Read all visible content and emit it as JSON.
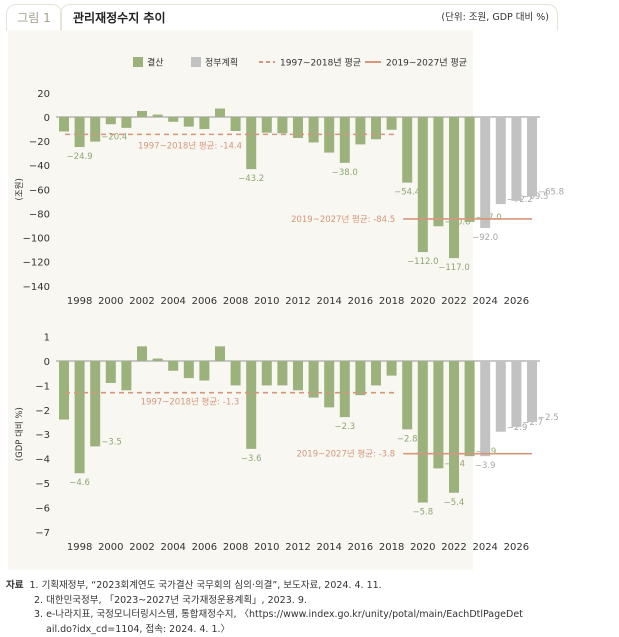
{
  "figure": {
    "label": "그림 1",
    "title": "관리재정수지 추이",
    "unit": "(단위: 조원, GDP 대비 %)"
  },
  "legend": [
    {
      "label": "결산",
      "color": "#9bb27c",
      "kind": "box"
    },
    {
      "label": "정부계획",
      "color": "#c2c2c2",
      "kind": "box"
    },
    {
      "label": "1997~2018년 평균",
      "color": "#d5977a",
      "kind": "dash"
    },
    {
      "label": "2019~2027년 평균",
      "color": "#d5977a",
      "kind": "line"
    }
  ],
  "colors": {
    "actual": "#9bb27c",
    "plan": "#c2c2c2",
    "avg": "#d5977a",
    "zero": "#a9a9a9",
    "panel": "#f8f7f2",
    "label_actual": "#8ea673",
    "label_plan": "#a6a6a6"
  },
  "chart_data": [
    {
      "type": "bar",
      "ylabel": "(조원)",
      "ylim": [
        -140,
        20
      ],
      "yticks": [
        20,
        0,
        -20,
        -40,
        -60,
        -80,
        -100,
        -120,
        -140
      ],
      "years": [
        1997,
        1998,
        1999,
        2000,
        2001,
        2002,
        2003,
        2004,
        2005,
        2006,
        2007,
        2008,
        2009,
        2010,
        2011,
        2012,
        2013,
        2014,
        2015,
        2016,
        2017,
        2018,
        2019,
        2020,
        2021,
        2022,
        2023,
        2024,
        2025,
        2026,
        2027
      ],
      "xtick_labels": [
        "1998",
        "2000",
        "2002",
        "2004",
        "2006",
        "2008",
        "2010",
        "2012",
        "2014",
        "2016",
        "2018",
        "2020",
        "2022",
        "2024",
        "2026"
      ],
      "values": [
        -12,
        -24.9,
        -20.4,
        -6,
        -9,
        5,
        2,
        -4,
        -8,
        -10,
        7,
        -11.6,
        -43.2,
        -13,
        -13.5,
        -17.4,
        -21.1,
        -29.5,
        -38.0,
        -22.7,
        -18.5,
        -10.6,
        -54.4,
        -112.0,
        -90.6,
        -117.0,
        -87.0,
        -92.0,
        -72.2,
        -69.5,
        -65.8
      ],
      "plan_from": 2024,
      "data_labels": {
        "1998": "-24.9",
        "1999": "-20.4",
        "2009": "-43.2",
        "2015": "-38.0",
        "2019": "-54.4",
        "2020": "-112.0",
        "2021": "-90.6",
        "2022": "-117.0",
        "2023": "-87.0",
        "2024": "-92.0",
        "2025": "-72.2",
        "2026": "-69.5",
        "2027": "-65.8"
      },
      "averages": [
        {
          "label": "1997~2018년 평균: -14.4",
          "value": -14.4,
          "from": 1997,
          "to": 2018,
          "style": "dashed"
        },
        {
          "label": "2019~2027년 평균: -84.5",
          "value": -84.5,
          "from": 2019,
          "to": 2027,
          "style": "solid"
        }
      ]
    },
    {
      "type": "bar",
      "ylabel": "(GDP 대비 %)",
      "ylim": [
        -7,
        1
      ],
      "yticks": [
        1,
        0,
        -1,
        -2,
        -3,
        -4,
        -5,
        -6,
        -7
      ],
      "years": [
        1997,
        1998,
        1999,
        2000,
        2001,
        2002,
        2003,
        2004,
        2005,
        2006,
        2007,
        2008,
        2009,
        2010,
        2011,
        2012,
        2013,
        2014,
        2015,
        2016,
        2017,
        2018,
        2019,
        2020,
        2021,
        2022,
        2023,
        2024,
        2025,
        2026,
        2027
      ],
      "xtick_labels": [
        "1998",
        "2000",
        "2002",
        "2004",
        "2006",
        "2008",
        "2010",
        "2012",
        "2014",
        "2016",
        "2018",
        "2020",
        "2022",
        "2024",
        "2026"
      ],
      "values": [
        -2.4,
        -4.6,
        -3.5,
        -0.9,
        -1.2,
        0.6,
        0.1,
        -0.4,
        -0.7,
        -0.8,
        0.6,
        -1.0,
        -3.6,
        -1.0,
        -1.0,
        -1.2,
        -1.5,
        -1.9,
        -2.3,
        -1.4,
        -1.0,
        -0.6,
        -2.8,
        -5.8,
        -4.4,
        -5.4,
        -3.9,
        -3.9,
        -2.9,
        -2.7,
        -2.5
      ],
      "plan_from": 2024,
      "data_labels": {
        "1998": "-4.6",
        "1999": "-3.5",
        "2009": "-3.6",
        "2015": "-2.3",
        "2019": "-2.8",
        "2020": "-5.8",
        "2021": "-4.4",
        "2022": "-5.4",
        "2023": "-3.9",
        "2024": "-3.9",
        "2025": "-2.9",
        "2026": "-2.7",
        "2027": "-2.5"
      },
      "averages": [
        {
          "label": "1997~2018년 평균: -1.3",
          "value": -1.3,
          "from": 1997,
          "to": 2018,
          "style": "dashed"
        },
        {
          "label": "2019~2027년 평균: -3.8",
          "value": -3.8,
          "from": 2019,
          "to": 2027,
          "style": "solid"
        }
      ]
    }
  ],
  "sources": {
    "heading": "자료",
    "items": [
      "1. 기획재정부, “2023회계연도 국가결산 국무회의 심의·의결”, 보도자료, 2024. 4. 11.",
      "2. 대한민국정부, 「2023~2027년 국가재정운용계획」, 2023. 9.",
      "3. e-나라지표, 국정모니터링시스템, 통합재정수지, 〈https://www.index.go.kr/unity/potal/main/EachDtlPageDet",
      "ail.do?idx_cd=1104, 접속: 2024. 4. 1.〉"
    ]
  }
}
